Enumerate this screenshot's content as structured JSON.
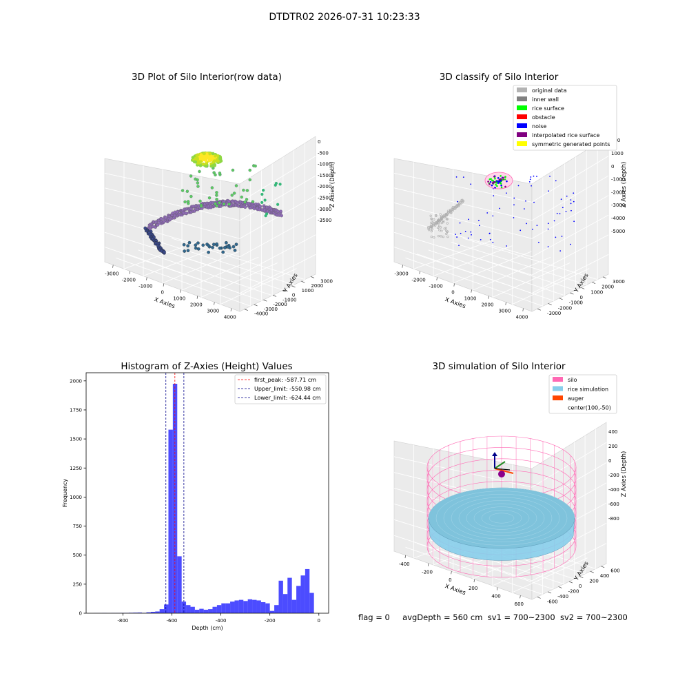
{
  "figure_title": "DTDTR02 2026-07-31 10:23:33",
  "status_line": {
    "flag": "flag = 0",
    "avg_depth": "avgDepth = 560 cm",
    "sv1": "sv1 = 700~2300",
    "sv2": "sv2 = 700~2300"
  },
  "chart_data": [
    {
      "type": "scatter",
      "title": "3D Plot of Silo Interior(row data)",
      "xlabel": "X Axies",
      "ylabel": "Y Axies",
      "zlabel": "Z Axies (Depth)",
      "x_ticks": [
        -3000,
        -2000,
        -1000,
        0,
        1000,
        2000,
        3000,
        4000
      ],
      "y_ticks": [
        -4000,
        -3000,
        -2000,
        -1000,
        0,
        1000,
        2000,
        3000
      ],
      "z_ticks": [
        0,
        -500,
        -1000,
        -1500,
        -2000,
        -2500,
        -3000,
        -3500
      ],
      "colormap": "viridis"
    },
    {
      "type": "scatter",
      "title": "3D classify of Silo Interior",
      "xlabel": "X Axies",
      "ylabel": "Y Axies",
      "zlabel": "Z Axies (Depth)",
      "x_ticks": [
        -3000,
        -2000,
        -1000,
        0,
        1000,
        2000,
        3000,
        4000
      ],
      "y_ticks": [
        -3000,
        -2000,
        -1000,
        0,
        1000,
        2000,
        3000
      ],
      "z_ticks": [
        1000,
        0,
        -1000,
        -2000,
        -3000,
        -4000,
        -5000
      ],
      "z_top_tick_partial": "000",
      "legend_position": "top-right",
      "legend": [
        {
          "label": "original data",
          "color": "#b3b3b3"
        },
        {
          "label": "inner wall",
          "color": "#808080"
        },
        {
          "label": "rice surface",
          "color": "#00ff00"
        },
        {
          "label": "obstacle",
          "color": "#ff0000"
        },
        {
          "label": "noise",
          "color": "#0000ff"
        },
        {
          "label": "interpolated rice surface",
          "color": "#800080"
        },
        {
          "label": "symmetric generated points",
          "color": "#ffff00"
        }
      ]
    },
    {
      "type": "bar",
      "subtype": "histogram",
      "title": "Histogram of Z-Axies (Height) Values",
      "xlabel": "Depth (cm)",
      "ylabel": "Frequency",
      "xlim": [
        -950,
        40
      ],
      "ylim": [
        0,
        2070
      ],
      "x_ticks": [
        -800,
        -600,
        -400,
        -200,
        0
      ],
      "y_ticks": [
        0,
        250,
        500,
        750,
        1000,
        1250,
        1500,
        1750,
        2000
      ],
      "bar_color": "#0000ff",
      "bin_width": 18,
      "bins": [
        {
          "x": -920,
          "v": 1
        },
        {
          "x": -902,
          "v": 1
        },
        {
          "x": -884,
          "v": 2
        },
        {
          "x": -866,
          "v": 1
        },
        {
          "x": -848,
          "v": 2
        },
        {
          "x": -830,
          "v": 2
        },
        {
          "x": -812,
          "v": 3
        },
        {
          "x": -794,
          "v": 3
        },
        {
          "x": -776,
          "v": 4
        },
        {
          "x": -758,
          "v": 5
        },
        {
          "x": -740,
          "v": 6
        },
        {
          "x": -722,
          "v": 3
        },
        {
          "x": -704,
          "v": 8
        },
        {
          "x": -686,
          "v": 12
        },
        {
          "x": -668,
          "v": 15
        },
        {
          "x": -650,
          "v": 35
        },
        {
          "x": -632,
          "v": 75
        },
        {
          "x": -614,
          "v": 1580
        },
        {
          "x": -596,
          "v": 1975
        },
        {
          "x": -578,
          "v": 490
        },
        {
          "x": -560,
          "v": 100
        },
        {
          "x": -542,
          "v": 70
        },
        {
          "x": -524,
          "v": 55
        },
        {
          "x": -506,
          "v": 30
        },
        {
          "x": -488,
          "v": 38
        },
        {
          "x": -470,
          "v": 30
        },
        {
          "x": -452,
          "v": 35
        },
        {
          "x": -434,
          "v": 55
        },
        {
          "x": -416,
          "v": 70
        },
        {
          "x": -398,
          "v": 85
        },
        {
          "x": -380,
          "v": 85
        },
        {
          "x": -362,
          "v": 100
        },
        {
          "x": -344,
          "v": 110
        },
        {
          "x": -326,
          "v": 115
        },
        {
          "x": -308,
          "v": 105
        },
        {
          "x": -290,
          "v": 120
        },
        {
          "x": -272,
          "v": 115
        },
        {
          "x": -254,
          "v": 110
        },
        {
          "x": -236,
          "v": 95
        },
        {
          "x": -218,
          "v": 85
        },
        {
          "x": -200,
          "v": 20
        },
        {
          "x": -182,
          "v": 70
        },
        {
          "x": -164,
          "v": 280
        },
        {
          "x": -146,
          "v": 165
        },
        {
          "x": -128,
          "v": 305
        },
        {
          "x": -110,
          "v": 115
        },
        {
          "x": -92,
          "v": 235
        },
        {
          "x": -74,
          "v": 325
        },
        {
          "x": -56,
          "v": 380
        },
        {
          "x": -38,
          "v": 175
        }
      ],
      "vlines": [
        {
          "label": "first_peak: -587.71 cm",
          "x": -587.71,
          "color": "#ff0000"
        },
        {
          "label": "Upper_limit: -550.98 cm",
          "x": -550.98,
          "color": "#00008b"
        },
        {
          "label": "Lower_limit: -624.44 cm",
          "x": -624.44,
          "color": "#00008b"
        }
      ],
      "legend_position": "top-right"
    },
    {
      "type": "scatter",
      "title": "3D simulation of Silo Interior",
      "xlabel": "X Axies",
      "ylabel": "Y Axies",
      "zlabel": "Z Axies (Depth)",
      "x_ticks": [
        -400,
        -200,
        0,
        200,
        400,
        600
      ],
      "y_ticks": [
        -600,
        -400,
        -200,
        0,
        200,
        400,
        600
      ],
      "z_ticks": [
        400,
        200,
        0,
        -200,
        -400,
        -600,
        -800
      ],
      "legend_position": "top-right",
      "legend": [
        {
          "label": "silo",
          "color": "#ff69b4"
        },
        {
          "label": "rice simulation",
          "color": "#87ceeb"
        },
        {
          "label": "auger",
          "color": "#ff4500"
        },
        {
          "label": "center(100,-50)",
          "color": ""
        }
      ]
    }
  ]
}
